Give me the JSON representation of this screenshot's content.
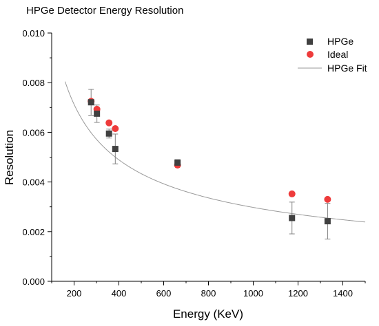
{
  "chart_data": {
    "type": "scatter",
    "title": "HPGe Detector Energy Resolution",
    "xlabel": "Energy (KeV)",
    "ylabel": "Resolution",
    "xlim": [
      100,
      1500
    ],
    "ylim": [
      0.0,
      0.01
    ],
    "x_ticks": [
      200,
      400,
      600,
      800,
      1000,
      1200,
      1400
    ],
    "x_tick_labels": [
      "200",
      "400",
      "600",
      "800",
      "1000",
      "1200",
      "1400"
    ],
    "y_ticks": [
      0.0,
      0.002,
      0.004,
      0.006,
      0.008,
      0.01
    ],
    "y_tick_labels": [
      "0.000",
      "0.002",
      "0.004",
      "0.006",
      "0.008",
      "0.010"
    ],
    "grid": false,
    "legend_position": "top-right",
    "series": [
      {
        "name": "HPGe",
        "marker": "square",
        "color": "#404040",
        "points": [
          {
            "x": 276,
            "y": 0.00721,
            "err": 0.00052
          },
          {
            "x": 302,
            "y": 0.00675,
            "err": 0.00035
          },
          {
            "x": 356,
            "y": 0.00595,
            "err": 0.00018
          },
          {
            "x": 384,
            "y": 0.00533,
            "err": 0.0006
          },
          {
            "x": 662,
            "y": 0.00478,
            "err": 0.00012
          },
          {
            "x": 1173,
            "y": 0.00255,
            "err": 0.00064
          },
          {
            "x": 1332,
            "y": 0.00242,
            "err": 0.00072
          }
        ]
      },
      {
        "name": "Ideal",
        "marker": "circle",
        "color": "#ee3b3b",
        "points": [
          {
            "x": 276,
            "y": 0.00725
          },
          {
            "x": 302,
            "y": 0.00693
          },
          {
            "x": 356,
            "y": 0.00638
          },
          {
            "x": 384,
            "y": 0.00615
          },
          {
            "x": 662,
            "y": 0.00468
          },
          {
            "x": 1173,
            "y": 0.00352
          },
          {
            "x": 1332,
            "y": 0.0033
          }
        ]
      },
      {
        "name": "HPGe Fit",
        "type": "line",
        "color": "#9a9a9a",
        "x_range": [
          160,
          1500
        ],
        "formula": "y = 0.1263 * x^-0.5426"
      }
    ]
  }
}
